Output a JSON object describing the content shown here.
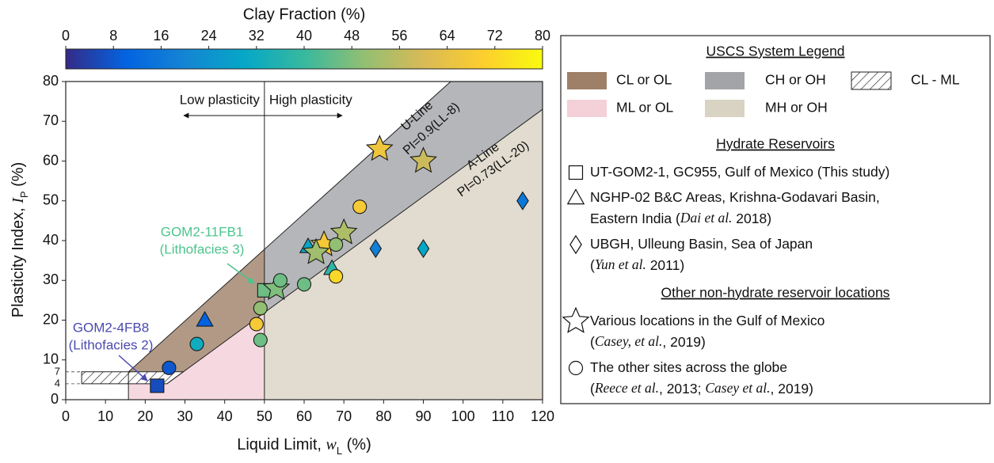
{
  "chart_data": {
    "type": "scatter",
    "colorbar": {
      "title": "Clay Fraction (%)",
      "clim": [
        0,
        80
      ],
      "ticks": [
        0,
        8,
        16,
        24,
        32,
        40,
        48,
        56,
        64,
        72,
        80
      ],
      "colormap": [
        "#352a87",
        "#0363e1",
        "#1485d4",
        "#06a7c6",
        "#38b99e",
        "#92bf73",
        "#d9ba56",
        "#fcce2e",
        "#f9fb0e"
      ]
    },
    "xlabel": [
      {
        "text": "Liquid Limit, "
      },
      {
        "text": "w",
        "italic": true
      },
      {
        "text": "L",
        "sub": true
      },
      {
        "text": " (%)"
      }
    ],
    "ylabel": [
      {
        "text": "Plasticity Index, "
      },
      {
        "text": "I",
        "italic": true
      },
      {
        "text": "P",
        "sub": true
      },
      {
        "text": " (%)"
      }
    ],
    "xlim": [
      0,
      120
    ],
    "xticks": [
      0,
      10,
      20,
      30,
      40,
      50,
      60,
      70,
      80,
      90,
      100,
      110,
      120
    ],
    "ylim": [
      0,
      80
    ],
    "yticks": [
      0,
      10,
      20,
      30,
      40,
      50,
      60,
      70,
      80
    ],
    "ref_lines": [
      7,
      4
    ],
    "cl_ml_left": 4,
    "plasticity_boundary": 50,
    "low_label": "Low plasticity",
    "high_label": "High plasticity",
    "lines": [
      {
        "name": "U-Line",
        "equation": "PI=0.9(LL-8)",
        "slope": 0.9,
        "offset": 8
      },
      {
        "name": "A-Line",
        "equation": "PI=0.73(LL-20)",
        "slope": 0.73,
        "offset": 20
      }
    ],
    "annotations": [
      {
        "lines": [
          "GOM2-11FB1",
          "(Lithofacies 3)"
        ],
        "color": "#4cc48c"
      },
      {
        "lines": [
          "GOM2-4FB8",
          "(Lithofacies 2)"
        ],
        "color": "#4a4ab0"
      }
    ],
    "series": [
      {
        "marker": "square",
        "x": [
          23,
          50
        ],
        "y": [
          3.5,
          27.5
        ],
        "clay": [
          6,
          46
        ]
      },
      {
        "marker": "triangle",
        "x": [
          35,
          61,
          67
        ],
        "y": [
          20,
          38.5,
          33
        ],
        "clay": [
          10,
          30,
          38
        ]
      },
      {
        "marker": "diamond",
        "x": [
          78,
          90,
          115
        ],
        "y": [
          38,
          38,
          50
        ],
        "clay": [
          18,
          30,
          16
        ]
      },
      {
        "marker": "star",
        "x": [
          79,
          90,
          70,
          65,
          63,
          53
        ],
        "y": [
          63,
          60,
          42,
          39,
          37,
          28
        ],
        "clay": [
          66,
          58,
          54,
          68,
          52,
          48
        ]
      },
      {
        "marker": "circle",
        "x": [
          26,
          33,
          48,
          49,
          49,
          54,
          60,
          68,
          68,
          74
        ],
        "y": [
          8,
          14,
          19,
          23,
          15,
          30,
          29,
          39,
          31,
          48.5
        ],
        "clay": [
          8,
          32,
          68,
          50,
          46,
          46,
          46,
          50,
          72,
          68
        ]
      }
    ],
    "legend": {
      "title": "USCS System Legend",
      "zones": [
        {
          "label": "CL or OL",
          "color": "#9e8068"
        },
        {
          "label": "CH or OH",
          "color": "#a3a4a8"
        },
        {
          "label": "CL - ML",
          "pattern": "hatch"
        },
        {
          "label": "ML or OL",
          "color": "#f4d0d8"
        },
        {
          "label": "MH or OH",
          "color": "#d9d3c3"
        }
      ],
      "sections": [
        {
          "title": "Hydrate Reservoirs",
          "items": [
            {
              "marker": "square",
              "lines": [
                [
                  {
                    "text": "UT-GOM2-1, GC955, Gulf of Mexico (This study)"
                  }
                ]
              ]
            },
            {
              "marker": "triangle",
              "lines": [
                [
                  {
                    "text": "NGHP-02 B&C Areas, Krishna-Godavari Basin,"
                  }
                ],
                [
                  {
                    "text": "Eastern India ("
                  },
                  {
                    "text": "Dai et al.",
                    "italic": true
                  },
                  {
                    "text": " 2018)"
                  }
                ]
              ]
            },
            {
              "marker": "diamond",
              "lines": [
                [
                  {
                    "text": "UBGH, Ulleung Basin, Sea of Japan"
                  }
                ],
                [
                  {
                    "text": "("
                  },
                  {
                    "text": "Yun et al.",
                    "italic": true
                  },
                  {
                    "text": " 2011)"
                  }
                ]
              ]
            }
          ]
        },
        {
          "title": "Other non-hydrate reservoir locations",
          "items": [
            {
              "marker": "star",
              "lines": [
                [
                  {
                    "text": "Various locations in the Gulf of Mexico"
                  }
                ],
                [
                  {
                    "text": "("
                  },
                  {
                    "text": "Casey, et al.",
                    "italic": true
                  },
                  {
                    "text": ", 2019)"
                  }
                ]
              ]
            },
            {
              "marker": "circle",
              "lines": [
                [
                  {
                    "text": "The other sites across the globe"
                  }
                ],
                [
                  {
                    "text": "("
                  },
                  {
                    "text": "Reece et al.",
                    "italic": true
                  },
                  {
                    "text": ", 2013; "
                  },
                  {
                    "text": "Casey et al.",
                    "italic": true
                  },
                  {
                    "text": ", 2019)"
                  }
                ]
              ]
            }
          ]
        }
      ]
    }
  }
}
